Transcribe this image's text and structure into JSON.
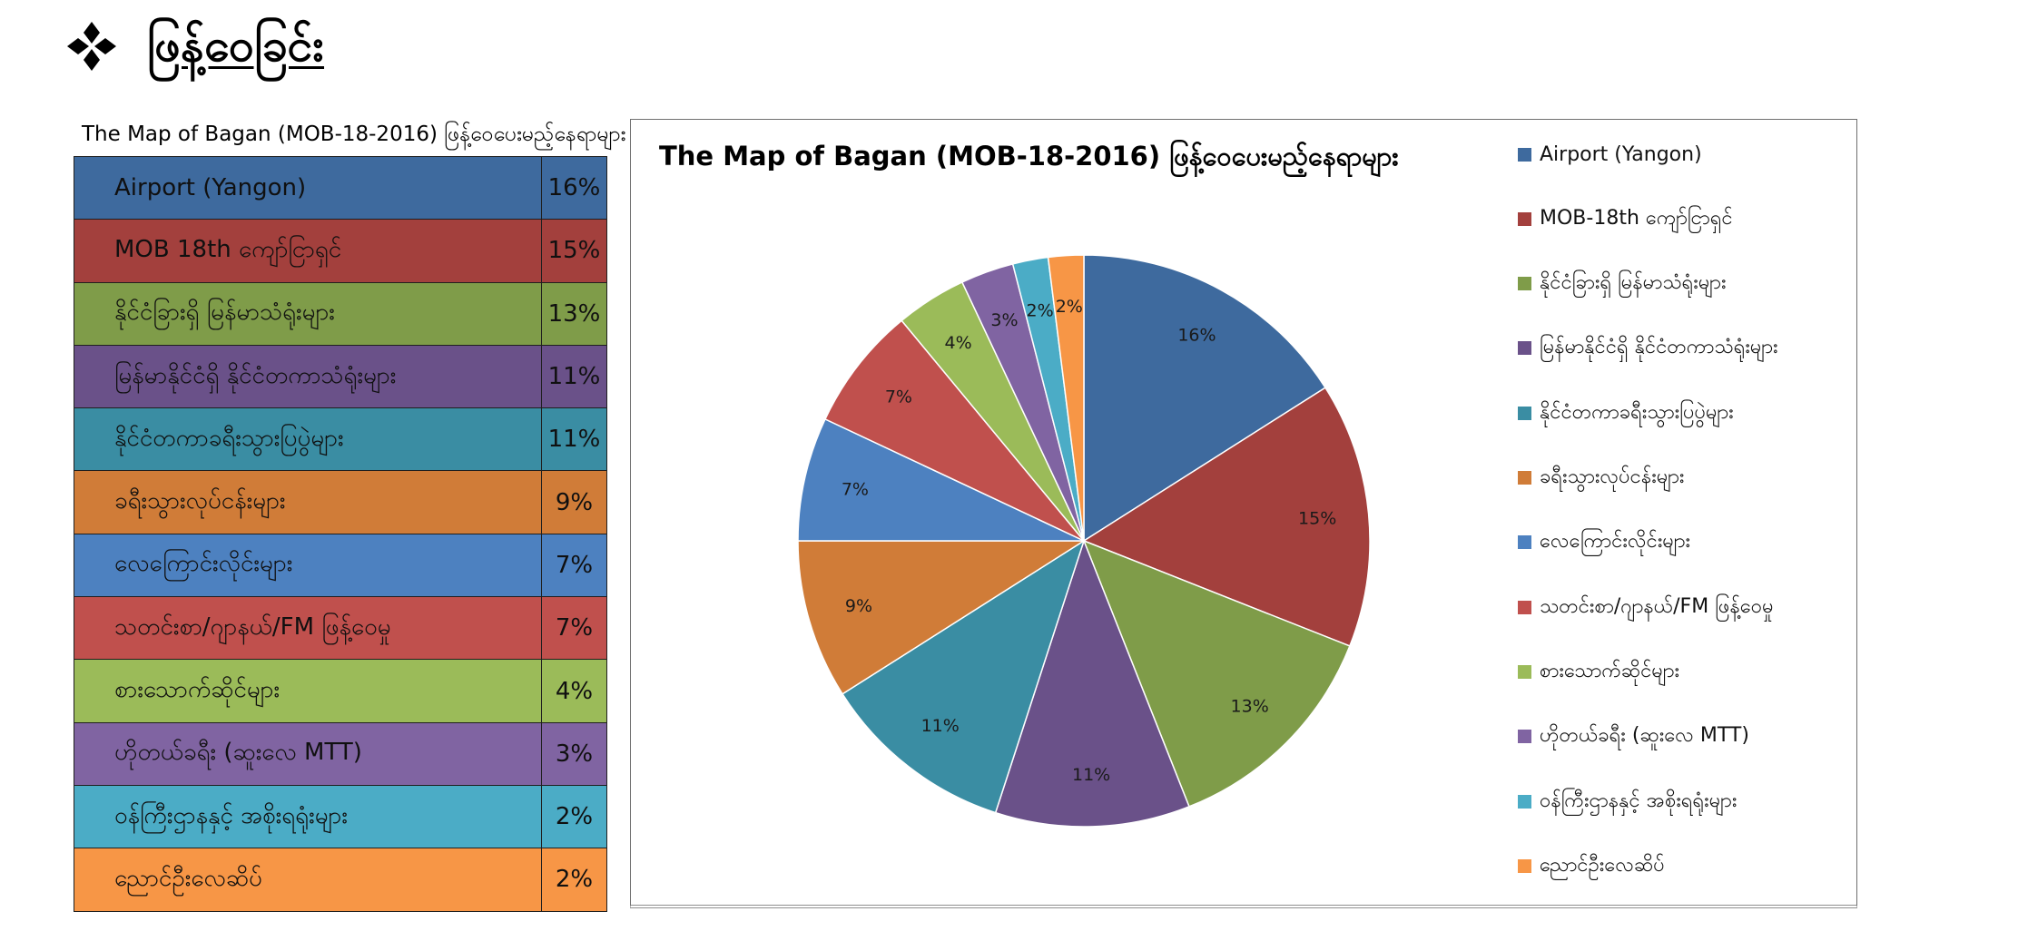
{
  "page": {
    "heading": "ဖြန့်ဝေခြင်း",
    "bullet_icon": "four-diamond-bullet-icon"
  },
  "table": {
    "caption": "The Map of Bagan (MOB-18-2016) ဖြန့်ဝေပေးမည့်နေရာများ",
    "rows": [
      {
        "label": "Airport (Yangon)",
        "value": "16%",
        "color": "#3e6a9e"
      },
      {
        "label": "MOB 18th ကျော်ငြာရှင်",
        "value": "15%",
        "color": "#a3403d"
      },
      {
        "label": "နိုင်ငံခြားရှိ မြန်မာသံရုံးများ",
        "value": "13%",
        "color": "#7f9c49"
      },
      {
        "label": "မြန်မာနိုင်ငံရှိ နိုင်ငံတကာသံရုံးများ",
        "value": "11%",
        "color": "#6a5189"
      },
      {
        "label": "နိုင်ငံတကာခရီးသွားပြပွဲများ",
        "value": "11%",
        "color": "#3a8da3"
      },
      {
        "label": "ခရီးသွားလုပ်ငန်းများ",
        "value": "9%",
        "color": "#d07c38"
      },
      {
        "label": "လေကြောင်းလိုင်းများ",
        "value": "7%",
        "color": "#4d81c0"
      },
      {
        "label": "သတင်းစာ/ဂျာနယ်/FM ဖြန့်ဝေမှု",
        "value": "7%",
        "color": "#c0504d"
      },
      {
        "label": "စားသောက်ဆိုင်များ",
        "value": "4%",
        "color": "#9bbb59"
      },
      {
        "label": "ဟိုတယ်ခရီး (ဆူးလေ MTT)",
        "value": "3%",
        "color": "#8064a2"
      },
      {
        "label": "ဝန်ကြီးဌာနနှင့် အစိုးရရုံးများ",
        "value": "2%",
        "color": "#4bacc6"
      },
      {
        "label": "ညောင်ဦးလေဆိပ်",
        "value": "2%",
        "color": "#f79646"
      }
    ]
  },
  "chart_data": {
    "type": "pie",
    "title": "The Map of Bagan (MOB-18-2016) ဖြန့်ဝေပေးမည့်နေရာများ",
    "categories": [
      "Airport (Yangon)",
      "MOB-18th ကျော်ငြာရှင်",
      "နိုင်ငံခြားရှိ မြန်မာသံရုံးများ",
      "မြန်မာနိုင်ငံရှိ နိုင်ငံတကာသံရုံးများ",
      "နိုင်ငံတကာခရီးသွားပြပွဲများ",
      "ခရီးသွားလုပ်ငန်းများ",
      "လေကြောင်းလိုင်းများ",
      "သတင်းစာ/ဂျာနယ်/FM ဖြန့်ဝေမှု",
      "စားသောက်ဆိုင်များ",
      "ဟိုတယ်ခရီး (ဆူးလေ MTT)",
      "ဝန်ကြီးဌာနနှင့် အစိုးရရုံးများ",
      "ညောင်ဦးလေဆိပ်"
    ],
    "values": [
      16,
      15,
      13,
      11,
      11,
      9,
      7,
      7,
      4,
      3,
      2,
      2
    ],
    "data_labels": [
      "16%",
      "15%",
      "13%",
      "11%",
      "11%",
      "9%",
      "7%",
      "7%",
      "4%",
      "3%",
      "2%",
      "2%"
    ],
    "colors": [
      "#3e6a9e",
      "#a3403d",
      "#7f9c49",
      "#6a5189",
      "#3a8da3",
      "#d07c38",
      "#4d81c0",
      "#c0504d",
      "#9bbb59",
      "#8064a2",
      "#4bacc6",
      "#f79646"
    ],
    "start": "12 o'clock",
    "direction": "clockwise",
    "legend_position": "right"
  }
}
